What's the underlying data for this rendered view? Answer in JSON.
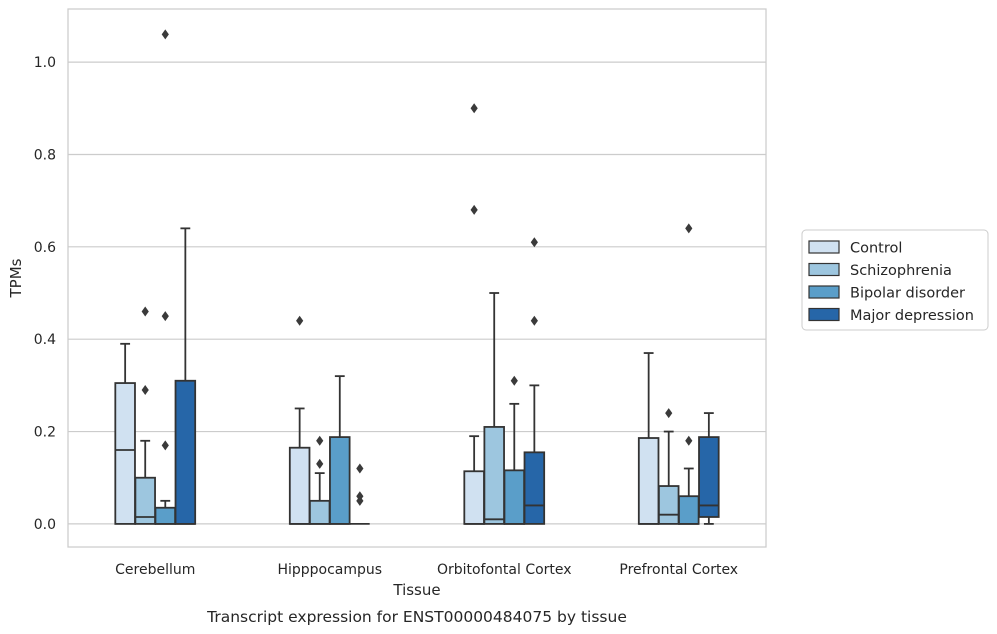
{
  "caption": "Transcript expression for ENST00000484075 by tissue",
  "chart_data": {
    "type": "boxplot",
    "xlabel": "Tissue",
    "ylabel": "TPMs",
    "ylim": [
      -0.05,
      1.115
    ],
    "yticks": [
      0.0,
      0.2,
      0.4,
      0.6,
      0.8,
      1.0
    ],
    "ytick_labels": [
      "0.0",
      "0.2",
      "0.4",
      "0.6",
      "0.8",
      "1.0"
    ],
    "grid": "horizontal",
    "legend_position": "right",
    "categories": [
      "Cerebellum",
      "Hipppocampus",
      "Orbitofontal Cortex",
      "Prefrontal Cortex"
    ],
    "series": [
      {
        "name": "Control",
        "color": "#d0e1f1",
        "boxes": [
          {
            "whislo": 0.0,
            "q1": 0.0,
            "med": 0.16,
            "q3": 0.305,
            "whishi": 0.39,
            "fliers": []
          },
          {
            "whislo": 0.0,
            "q1": 0.0,
            "med": 0.0,
            "q3": 0.165,
            "whishi": 0.25,
            "fliers": [
              0.44
            ]
          },
          {
            "whislo": 0.0,
            "q1": 0.0,
            "med": 0.0,
            "q3": 0.114,
            "whishi": 0.19,
            "fliers": [
              0.68,
              0.9
            ]
          },
          {
            "whislo": 0.0,
            "q1": 0.0,
            "med": 0.0,
            "q3": 0.186,
            "whishi": 0.37,
            "fliers": []
          }
        ]
      },
      {
        "name": "Schizophrenia",
        "color": "#9dc6df",
        "boxes": [
          {
            "whislo": 0.0,
            "q1": 0.0,
            "med": 0.015,
            "q3": 0.1,
            "whishi": 0.18,
            "fliers": [
              0.29,
              0.46
            ]
          },
          {
            "whislo": 0.0,
            "q1": 0.0,
            "med": 0.0,
            "q3": 0.05,
            "whishi": 0.11,
            "fliers": [
              0.13,
              0.18
            ]
          },
          {
            "whislo": 0.0,
            "q1": 0.0,
            "med": 0.01,
            "q3": 0.21,
            "whishi": 0.5,
            "fliers": []
          },
          {
            "whislo": 0.0,
            "q1": 0.0,
            "med": 0.02,
            "q3": 0.082,
            "whishi": 0.2,
            "fliers": [
              0.24
            ]
          }
        ]
      },
      {
        "name": "Bipolar disorder",
        "color": "#5a9ec9",
        "boxes": [
          {
            "whislo": 0.0,
            "q1": 0.0,
            "med": 0.0,
            "q3": 0.035,
            "whishi": 0.05,
            "fliers": [
              0.17,
              0.45,
              1.06
            ]
          },
          {
            "whislo": 0.0,
            "q1": 0.0,
            "med": 0.0,
            "q3": 0.188,
            "whishi": 0.32,
            "fliers": []
          },
          {
            "whislo": 0.0,
            "q1": 0.0,
            "med": 0.0,
            "q3": 0.116,
            "whishi": 0.26,
            "fliers": [
              0.31
            ]
          },
          {
            "whislo": 0.0,
            "q1": 0.0,
            "med": 0.0,
            "q3": 0.06,
            "whishi": 0.12,
            "fliers": [
              0.18,
              0.64
            ]
          }
        ]
      },
      {
        "name": "Major depression",
        "color": "#2666a8",
        "boxes": [
          {
            "whislo": 0.0,
            "q1": 0.0,
            "med": 0.0,
            "q3": 0.31,
            "whishi": 0.64,
            "fliers": []
          },
          {
            "whislo": 0.0,
            "q1": 0.0,
            "med": 0.0,
            "q3": 0.0,
            "whishi": 0.0,
            "fliers": [
              0.05,
              0.06,
              0.12
            ]
          },
          {
            "whislo": 0.0,
            "q1": 0.0,
            "med": 0.04,
            "q3": 0.155,
            "whishi": 0.3,
            "fliers": [
              0.44,
              0.61
            ]
          },
          {
            "whislo": 0.0,
            "q1": 0.015,
            "med": 0.04,
            "q3": 0.188,
            "whishi": 0.24,
            "fliers": []
          }
        ]
      }
    ]
  }
}
